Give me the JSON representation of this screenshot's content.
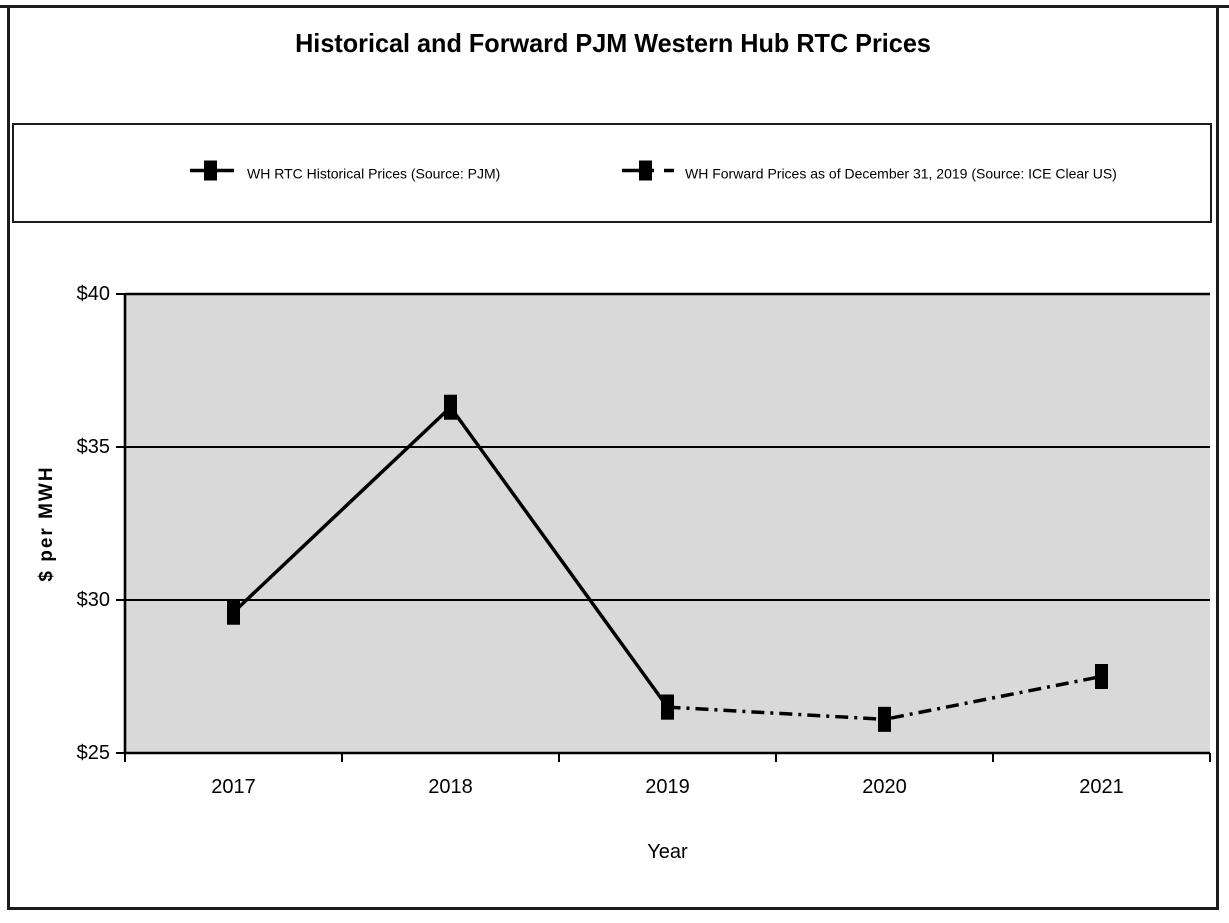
{
  "page": {
    "title": "Historical and Forward PJM Western Hub RTC Prices"
  },
  "legend": {
    "items": [
      {
        "label": "WH RTC Historical Prices (Source: PJM)",
        "line_style": "solid",
        "marker": "filled-square",
        "color": "#000000"
      },
      {
        "label": "WH Forward Prices as of December 31, 2019 (Source: ICE Clear US)",
        "line_style": "dash-dot",
        "marker": "filled-square",
        "color": "#000000"
      }
    ]
  },
  "chart_data": {
    "type": "line",
    "title": "Historical and Forward PJM Western Hub RTC Prices",
    "xlabel": "Year",
    "ylabel": "$ per MWH",
    "categories": [
      "2017",
      "2018",
      "2019",
      "2020",
      "2021"
    ],
    "series": [
      {
        "name": "WH RTC Historical Prices (Source: PJM)",
        "line_style": "solid",
        "x": [
          "2017",
          "2018",
          "2019"
        ],
        "values": [
          29.6,
          36.3,
          26.5
        ]
      },
      {
        "name": "WH Forward Prices as of December 31, 2019 (Source: ICE Clear US)",
        "line_style": "dash-dot",
        "x": [
          "2019",
          "2020",
          "2021"
        ],
        "values": [
          26.5,
          26.1,
          27.5
        ]
      }
    ],
    "ylim": [
      25,
      40
    ],
    "y_ticks": [
      "$25",
      "$30",
      "$35",
      "$40"
    ],
    "y_tick_values": [
      25,
      30,
      35,
      40
    ],
    "grid": true,
    "legend_position": "top",
    "plot_bg": "#d9d9d9",
    "line_color": "#000000",
    "text_color": "#000000",
    "marker": "filled-square"
  }
}
